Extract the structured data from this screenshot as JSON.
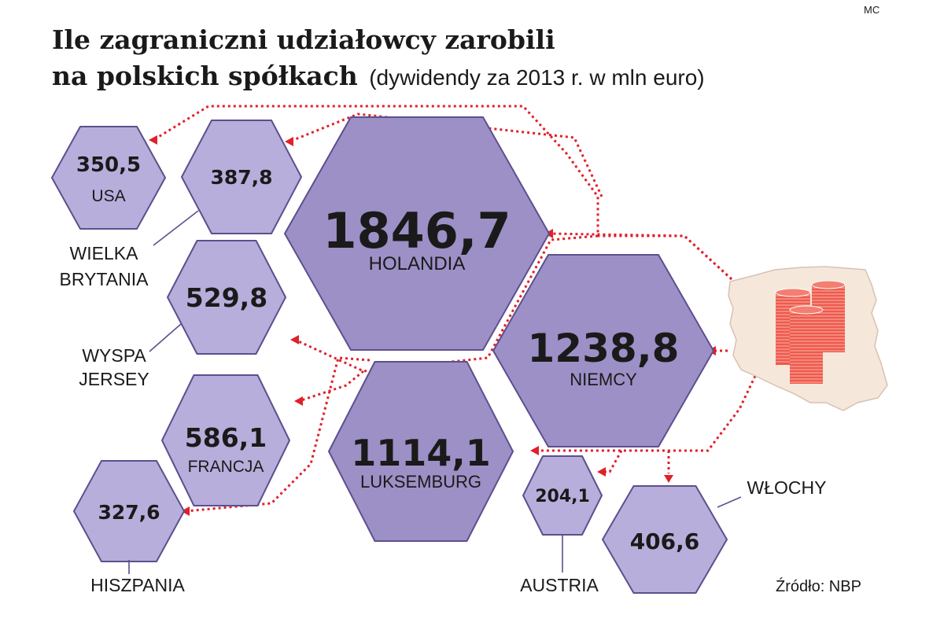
{
  "header": {
    "credit": "MC",
    "title_line1": "Ile zagraniczni udziałowcy zarobili",
    "title_line2": "na polskich spółkach",
    "subtitle": "(dywidendy za 2013 r. w mln euro)"
  },
  "source": "Źródło: NBP",
  "colors": {
    "hex_dark": "#9d90c6",
    "hex_light": "#b8aedb",
    "hex_stroke": "#5d4f8e",
    "flow": "#e0202a",
    "map_fill": "#f6e7db",
    "coins": "#ef5a4c"
  },
  "chart_data": {
    "type": "other",
    "unit": "mln euro",
    "title": "Ile zagraniczni udziałowcy zarobili na polskich spółkach",
    "subtitle": "(dywidendy za 2013 r. w mln euro)",
    "categories": [
      "HOLANDIA",
      "NIEMCY",
      "LUKSEMBURG",
      "FRANCJA",
      "WYSPA JERSEY",
      "WŁOCHY",
      "WIELKA BRYTANIA",
      "USA",
      "HISZPANIA",
      "AUSTRIA"
    ],
    "values": [
      1846.7,
      1238.8,
      1114.1,
      586.1,
      529.8,
      406.6,
      387.8,
      350.5,
      327.6,
      204.1
    ],
    "value_labels": [
      "1846,7",
      "1238,8",
      "1114,1",
      "586,1",
      "529,8",
      "406,6",
      "387,8",
      "350,5",
      "327,6",
      "204,1"
    ],
    "label_lines": [
      [
        "HOLANDIA"
      ],
      [
        "NIEMCY"
      ],
      [
        "LUKSEMBURG"
      ],
      [
        "FRANCJA"
      ],
      [
        "WYSPA",
        "JERSEY"
      ],
      [
        "WŁOCHY"
      ],
      [
        "WIELKA",
        "BRYTANIA"
      ],
      [
        "USA"
      ],
      [
        "HISZPANIA"
      ],
      [
        "AUSTRIA"
      ]
    ],
    "label_inside": [
      true,
      true,
      true,
      true,
      false,
      false,
      false,
      true,
      false,
      false
    ]
  }
}
